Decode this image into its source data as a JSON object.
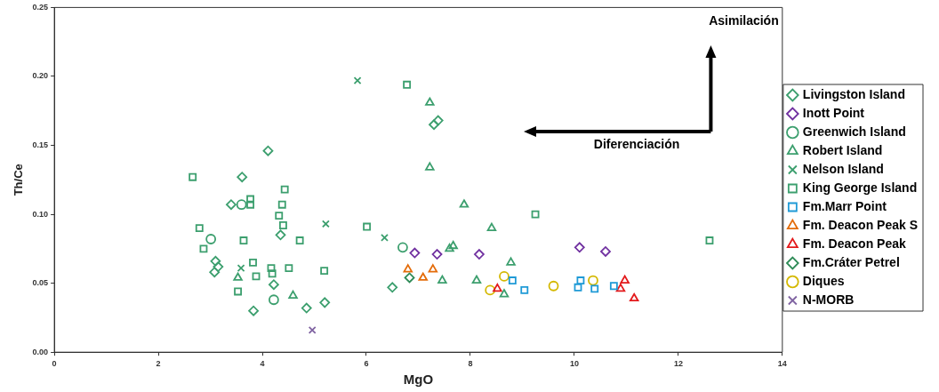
{
  "chart_data": {
    "type": "scatter",
    "xlabel": "MgO",
    "ylabel": "Th/Ce",
    "xlim": [
      0,
      14
    ],
    "xticks": [
      0,
      2,
      4,
      6,
      8,
      10,
      12,
      14
    ],
    "ylim": [
      0,
      0.25
    ],
    "yticks": [
      {
        "value": 0,
        "label": "0.00"
      },
      {
        "value": 0.05,
        "label": "0.05"
      },
      {
        "value": 0.1,
        "label": "0.10"
      },
      {
        "value": 0.15,
        "label": "0.15"
      },
      {
        "value": 0.2,
        "label": "0.20"
      },
      {
        "value": 0.25,
        "label": "0.25"
      }
    ],
    "grid": false,
    "legend": "right",
    "annotations": [
      "Asimilación",
      "Diferenciación"
    ],
    "series": [
      {
        "name": "Livingston Island",
        "color": "#3c9f6e",
        "marker": "diamond",
        "x": [
          4.11,
          3.61,
          3.4,
          4.35,
          3.1,
          3.15,
          3.08,
          4.22,
          3.83,
          4.85,
          5.2,
          6.5,
          7.3,
          7.38
        ],
        "values": [
          0.146,
          0.127,
          0.107,
          0.085,
          0.066,
          0.062,
          0.058,
          0.049,
          0.03,
          0.032,
          0.036,
          0.047,
          0.165,
          0.168
        ]
      },
      {
        "name": "Inott Point",
        "color": "#7030a0",
        "marker": "diamond",
        "x": [
          6.93,
          7.36,
          8.17,
          10.1,
          10.6
        ],
        "values": [
          0.072,
          0.071,
          0.071,
          0.076,
          0.073
        ]
      },
      {
        "name": "Greenwich Island",
        "color": "#3c9f6e",
        "marker": "circle",
        "x": [
          3.6,
          3.01,
          4.22,
          6.7
        ],
        "values": [
          0.107,
          0.082,
          0.038,
          0.076
        ]
      },
      {
        "name": "Robert Island",
        "color": "#3c9f6e",
        "marker": "triangle",
        "x": [
          7.22,
          7.22,
          7.88,
          8.41,
          7.67,
          7.6,
          8.78,
          7.46,
          8.12,
          8.65,
          3.53,
          4.59
        ],
        "values": [
          0.181,
          0.134,
          0.107,
          0.09,
          0.077,
          0.075,
          0.065,
          0.052,
          0.052,
          0.042,
          0.054,
          0.041
        ]
      },
      {
        "name": "Nelson Island",
        "color": "#3c9f6e",
        "marker": "cross",
        "x": [
          5.83,
          5.22,
          6.35,
          3.59
        ],
        "values": [
          0.197,
          0.093,
          0.083,
          0.061
        ]
      },
      {
        "name": "King George Island",
        "color": "#3c9f6e",
        "marker": "square",
        "x": [
          2.66,
          3.77,
          3.77,
          4.43,
          4.38,
          4.32,
          4.4,
          2.79,
          3.64,
          4.72,
          2.87,
          6.01,
          3.82,
          4.17,
          4.19,
          4.51,
          3.88,
          5.19,
          3.53,
          6.78,
          9.25,
          12.6
        ],
        "values": [
          0.127,
          0.111,
          0.107,
          0.118,
          0.107,
          0.099,
          0.092,
          0.09,
          0.081,
          0.081,
          0.075,
          0.091,
          0.065,
          0.061,
          0.057,
          0.061,
          0.055,
          0.059,
          0.044,
          0.194,
          0.1,
          0.081
        ]
      },
      {
        "name": "Fm.Marr Point",
        "color": "#1f9ad6",
        "marker": "square",
        "x": [
          8.81,
          9.04,
          10.12,
          10.07,
          10.39,
          10.76
        ],
        "values": [
          0.052,
          0.045,
          0.052,
          0.047,
          0.046,
          0.048
        ]
      },
      {
        "name": "Fm. Deacon Peak S",
        "color": "#e46c0a",
        "marker": "triangle",
        "x": [
          6.8,
          7.09,
          7.28
        ],
        "values": [
          0.06,
          0.054,
          0.06
        ]
      },
      {
        "name": "Fm. Deacon Peak",
        "color": "#e31a1c",
        "marker": "triangle",
        "x": [
          10.97,
          10.89,
          11.15,
          8.52
        ],
        "values": [
          0.052,
          0.046,
          0.039,
          0.046
        ]
      },
      {
        "name": "Fm.Cráter Petrel",
        "color": "#2e8b57",
        "marker": "diamond",
        "x": [
          6.83
        ],
        "values": [
          0.054
        ]
      },
      {
        "name": "Diques",
        "color": "#d4b800",
        "marker": "circle",
        "x": [
          8.65,
          8.38,
          9.6,
          10.36
        ],
        "values": [
          0.055,
          0.045,
          0.048,
          0.052
        ]
      },
      {
        "name": "N-MORB",
        "color": "#8064a2",
        "marker": "cross",
        "x": [
          4.96
        ],
        "values": [
          0.016
        ]
      }
    ]
  }
}
